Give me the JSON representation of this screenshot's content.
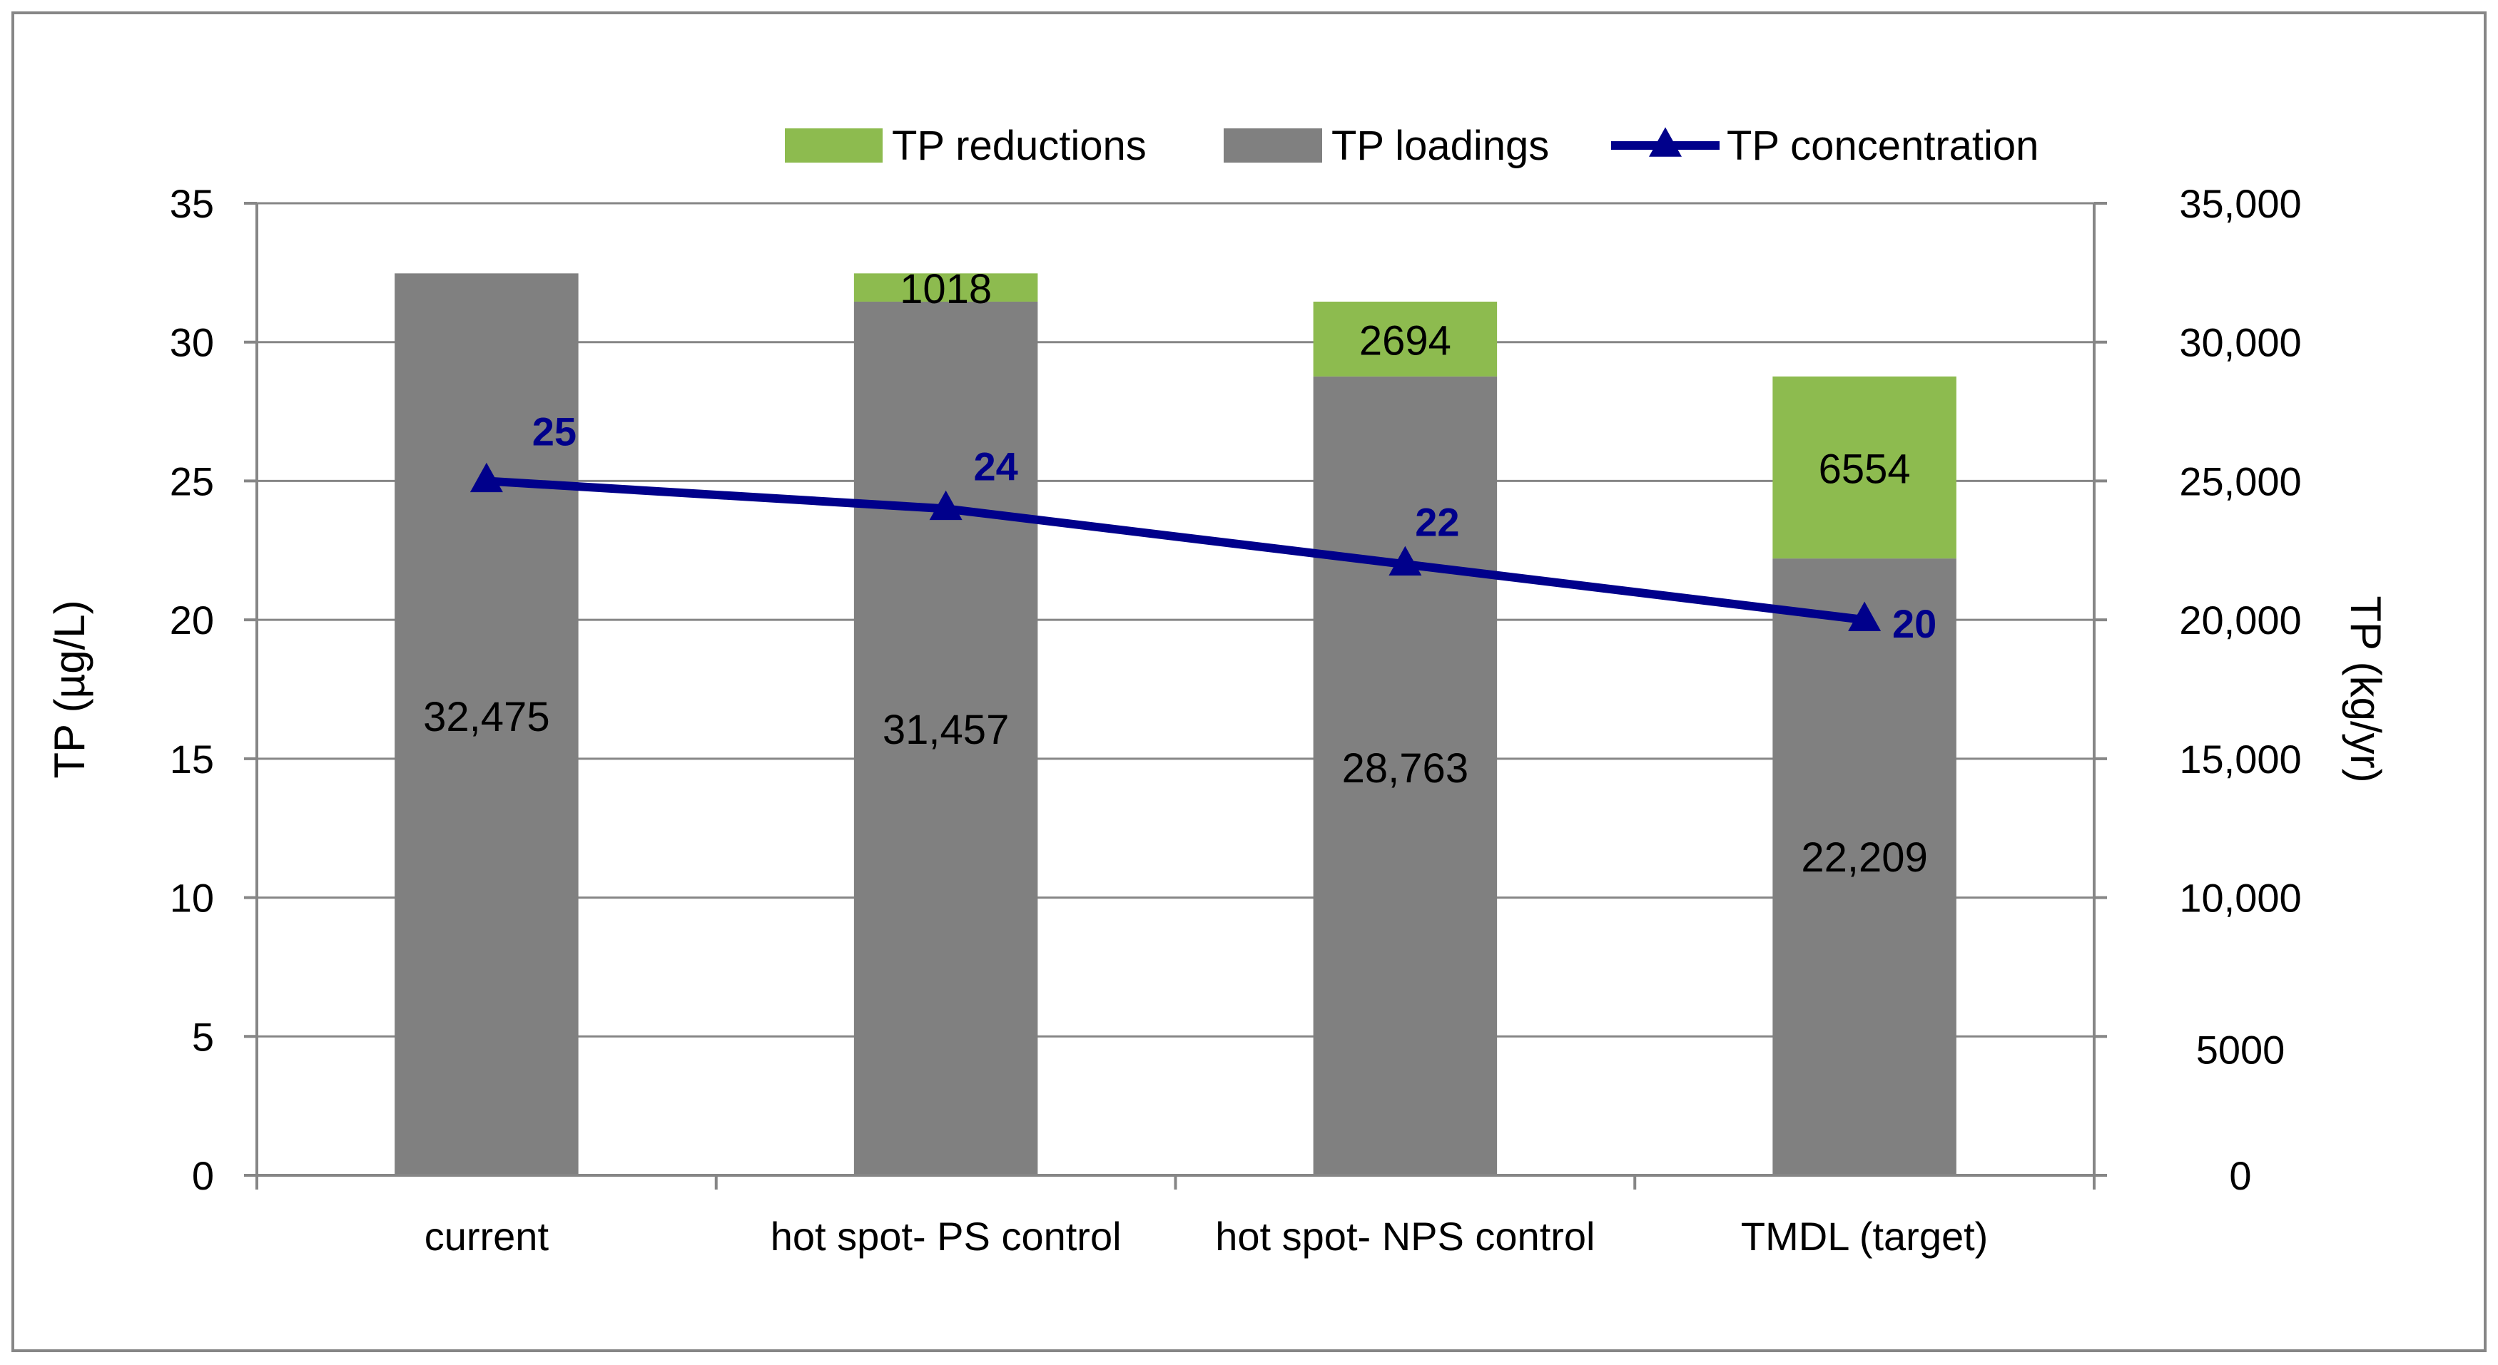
{
  "chart_data": {
    "type": "bar",
    "categories": [
      "current",
      "hot spot- PS control",
      "hot spot- NPS control",
      "TMDL (target)"
    ],
    "series": [
      {
        "name": "TP loadings",
        "kind": "bar",
        "axis": "right",
        "stack": "tp",
        "color": "#808080",
        "values": [
          32475,
          31457,
          28763,
          22209
        ],
        "labels": [
          "32,475",
          "31,457",
          "28,763",
          "22,209"
        ]
      },
      {
        "name": "TP reductions",
        "kind": "bar",
        "axis": "right",
        "stack": "tp",
        "color": "#8DBB4F",
        "values": [
          null,
          1018,
          2694,
          6554
        ],
        "labels": [
          "",
          "1018",
          "2694",
          "6554"
        ]
      },
      {
        "name": "TP concentration",
        "kind": "line",
        "axis": "left",
        "marker": "triangle",
        "color": "#00008B",
        "values": [
          25,
          24,
          22,
          20
        ],
        "labels": [
          "25",
          "24",
          "22",
          "20"
        ]
      }
    ],
    "legend": {
      "position": "top-right",
      "order": [
        "TP reductions",
        "TP loadings",
        "TP concentration"
      ]
    },
    "y_left": {
      "label": "TP (µg/L)",
      "min": 0,
      "max": 35,
      "ticks": [
        0,
        5,
        10,
        15,
        20,
        25,
        30,
        35
      ],
      "tick_labels": [
        "0",
        "5",
        "10",
        "15",
        "20",
        "25",
        "30",
        "35"
      ]
    },
    "y_right": {
      "label": "TP (kg/yr)",
      "min": 0,
      "max": 35000,
      "ticks": [
        0,
        5000,
        10000,
        15000,
        20000,
        25000,
        30000,
        35000
      ],
      "tick_labels": [
        "0",
        "5000",
        "10,000",
        "15,000",
        "20,000",
        "25,000",
        "30,000",
        "35,000"
      ]
    },
    "grid": true,
    "colors": {
      "grid": "#868686",
      "axis": "#868686",
      "text": "#000000",
      "frame": "#868686"
    }
  }
}
